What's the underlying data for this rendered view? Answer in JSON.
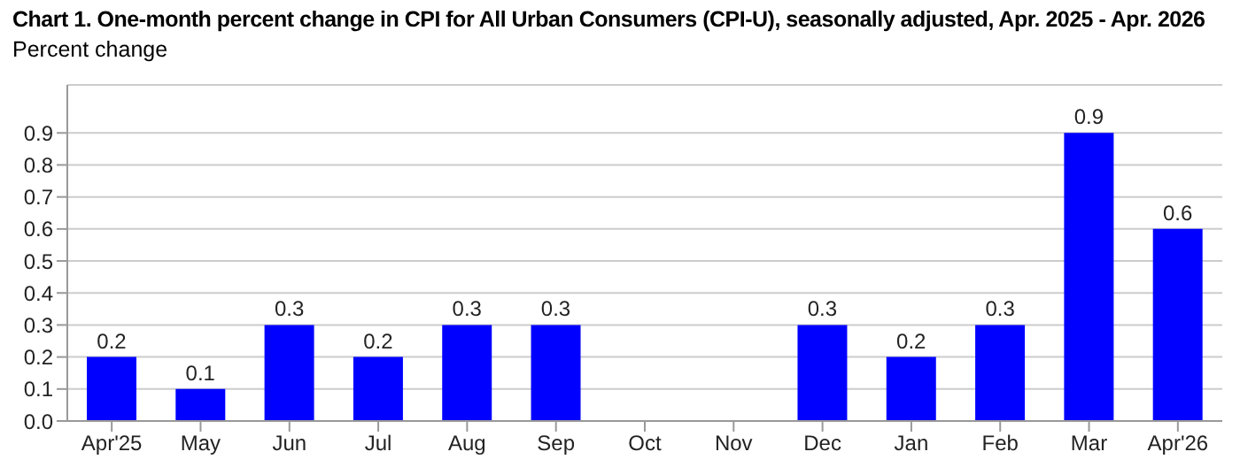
{
  "chart_data": {
    "type": "bar",
    "title": "Chart 1. One-month percent change in CPI for All Urban Consumers (CPI-U), seasonally adjusted, Apr. 2025 - Apr. 2026",
    "ylabel": "Percent change",
    "categories": [
      "Apr'25",
      "May",
      "Jun",
      "Jul",
      "Aug",
      "Sep",
      "Oct",
      "Nov",
      "Dec",
      "Jan",
      "Feb",
      "Mar",
      "Apr'26"
    ],
    "values": [
      0.2,
      0.1,
      0.3,
      0.2,
      0.3,
      0.3,
      null,
      null,
      0.3,
      0.2,
      0.3,
      0.9,
      0.6
    ],
    "color": "#0000ff",
    "data_labels": true,
    "grid": "y",
    "ylim": [
      0,
      1.05
    ],
    "yticks": [
      {
        "value": 0,
        "label": "0.0"
      },
      {
        "value": 0.1,
        "label": "0.1"
      },
      {
        "value": 0.2,
        "label": "0.2"
      },
      {
        "value": 0.3,
        "label": "0.3"
      },
      {
        "value": 0.4,
        "label": "0.4"
      },
      {
        "value": 0.5,
        "label": "0.5"
      },
      {
        "value": 0.6,
        "label": "0.6"
      },
      {
        "value": 0.7,
        "label": "0.7"
      },
      {
        "value": 0.8,
        "label": "0.8"
      },
      {
        "value": 0.9,
        "label": "0.9"
      }
    ]
  }
}
